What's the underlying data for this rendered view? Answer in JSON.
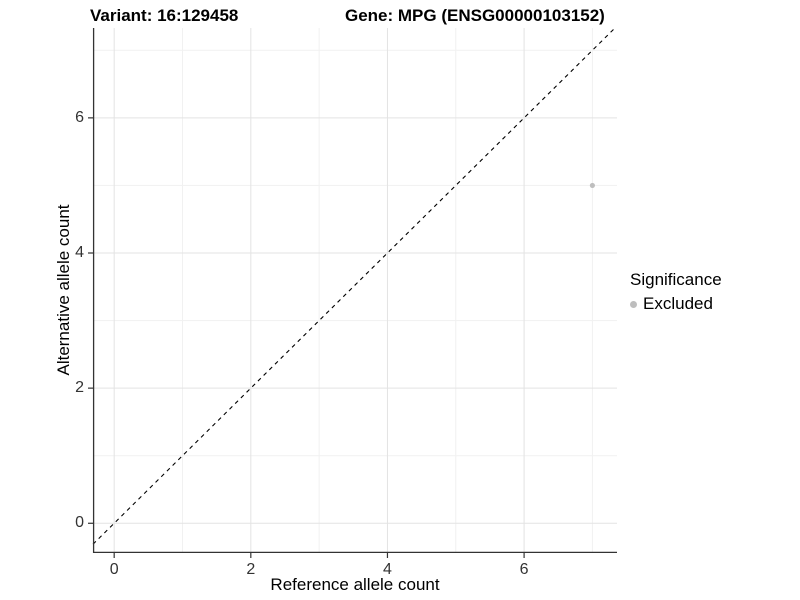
{
  "titles": {
    "variant": "Variant: 16:129458",
    "gene": "Gene: MPG (ENSG00000103152)"
  },
  "chart_data": {
    "type": "scatter",
    "title_left": "Variant: 16:129458",
    "title_right": "Gene: MPG (ENSG00000103152)",
    "xlabel": "Reference allele count",
    "ylabel": "Alternative allele count",
    "xlim": [
      -0.31,
      7.36
    ],
    "ylim": [
      -0.44,
      7.33
    ],
    "x_major_ticks": [
      0,
      2,
      4,
      6
    ],
    "y_major_ticks": [
      0,
      2,
      4,
      6
    ],
    "x_minor_ticks": [
      1,
      3,
      5,
      7
    ],
    "y_minor_ticks": [
      1,
      3,
      5,
      7
    ],
    "grid": "major-and-minor",
    "reference_line": {
      "type": "identity",
      "equation": "y = x",
      "style": "dashed",
      "color": "#000000"
    },
    "series": [
      {
        "name": "Excluded",
        "color": "#bebebe",
        "point_radius": 2.6,
        "points": [
          {
            "x": 7,
            "y": 5
          }
        ]
      }
    ],
    "legend": {
      "title": "Significance",
      "position": "right",
      "entries": [
        {
          "label": "Excluded",
          "color": "#bebebe"
        }
      ]
    },
    "colors": {
      "background": "#ffffff",
      "grid_major": "#e3e3e3",
      "grid_minor": "#f1f1f1",
      "axis_line": "#333333",
      "tick_label": "#333333",
      "text": "#000000"
    }
  }
}
